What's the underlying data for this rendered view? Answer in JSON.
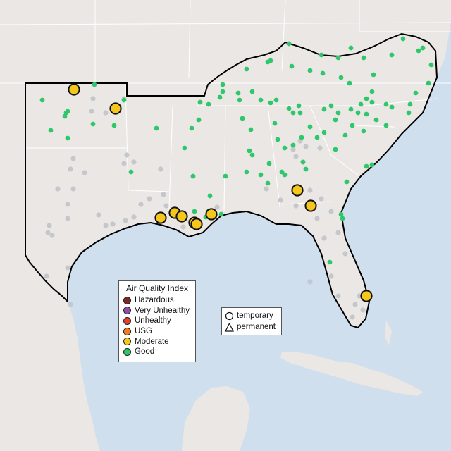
{
  "legend": {
    "title": "Air Quality Index",
    "categories": [
      {
        "label": "Hazardous",
        "color": "#7b2a22"
      },
      {
        "label": "Very Unhealthy",
        "color": "#8b4fa7"
      },
      {
        "label": "Unhealthy",
        "color": "#e64029"
      },
      {
        "label": "USG",
        "color": "#ee7d1f"
      },
      {
        "label": "Moderate",
        "color": "#f5c61c"
      },
      {
        "label": "Good",
        "color": "#2ec76b"
      }
    ]
  },
  "shape_legend": {
    "items": [
      {
        "label": "temporary",
        "shape": "circle"
      },
      {
        "label": "permanent",
        "shape": "triangle"
      }
    ]
  },
  "colors": {
    "water": "#cfdfee",
    "land": "#ebe7e4",
    "region_outline": "#000000",
    "state_borders": "#ffffff",
    "no_data_sites": "#c4c7cc"
  },
  "map_features": {
    "moderate_sites_icon": "large-yellow-circle",
    "good_sites_icon": "small-green-dot",
    "no_data_sites_icon": "small-gray-dot"
  }
}
